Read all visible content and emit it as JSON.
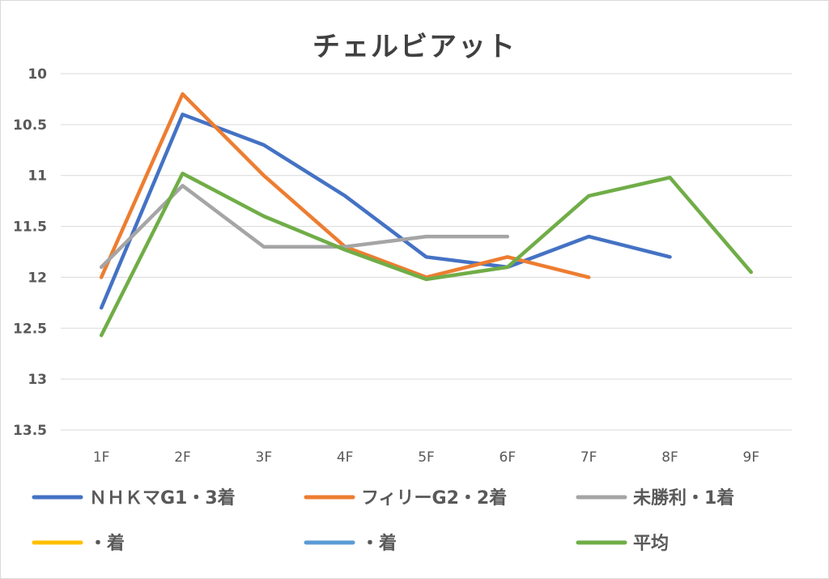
{
  "chart_data": {
    "type": "line",
    "title": "チェルビアット",
    "categories": [
      "1F",
      "2F",
      "3F",
      "4F",
      "5F",
      "6F",
      "7F",
      "8F",
      "9F"
    ],
    "y_axis": {
      "reversed": true,
      "ylim": [
        10,
        13.5
      ],
      "ticks": [
        "10",
        "10.5",
        "11",
        "11.5",
        "12",
        "12.5",
        "13",
        "13.5"
      ],
      "tick_values": [
        10,
        10.5,
        11,
        11.5,
        12,
        12.5,
        13,
        13.5
      ]
    },
    "grid": true,
    "legend": "bottom",
    "series": [
      {
        "name": "ＮＨＫマG1・3着",
        "color": "#4472C4",
        "values": [
          12.3,
          10.4,
          10.7,
          11.2,
          11.8,
          11.9,
          11.6,
          11.8,
          null
        ]
      },
      {
        "name": "フィリーG2・2着",
        "color": "#ED7D31",
        "values": [
          12.0,
          10.2,
          11.0,
          11.7,
          12.0,
          11.8,
          12.0,
          null,
          null
        ]
      },
      {
        "name": "未勝利・1着",
        "color": "#A5A5A5",
        "values": [
          11.9,
          11.1,
          11.7,
          11.7,
          11.6,
          11.6,
          null,
          null,
          null
        ]
      },
      {
        "name": "・着",
        "color": "#FFC000",
        "values": [
          null,
          null,
          null,
          null,
          null,
          null,
          null,
          null,
          null
        ]
      },
      {
        "name": "・着",
        "color": "#5B9BD5",
        "values": [
          null,
          null,
          null,
          null,
          null,
          null,
          null,
          null,
          null
        ]
      },
      {
        "name": "平均",
        "color": "#70AD47",
        "values": [
          12.57,
          10.98,
          11.4,
          11.73,
          12.02,
          11.9,
          11.2,
          11.02,
          11.95
        ]
      }
    ]
  }
}
